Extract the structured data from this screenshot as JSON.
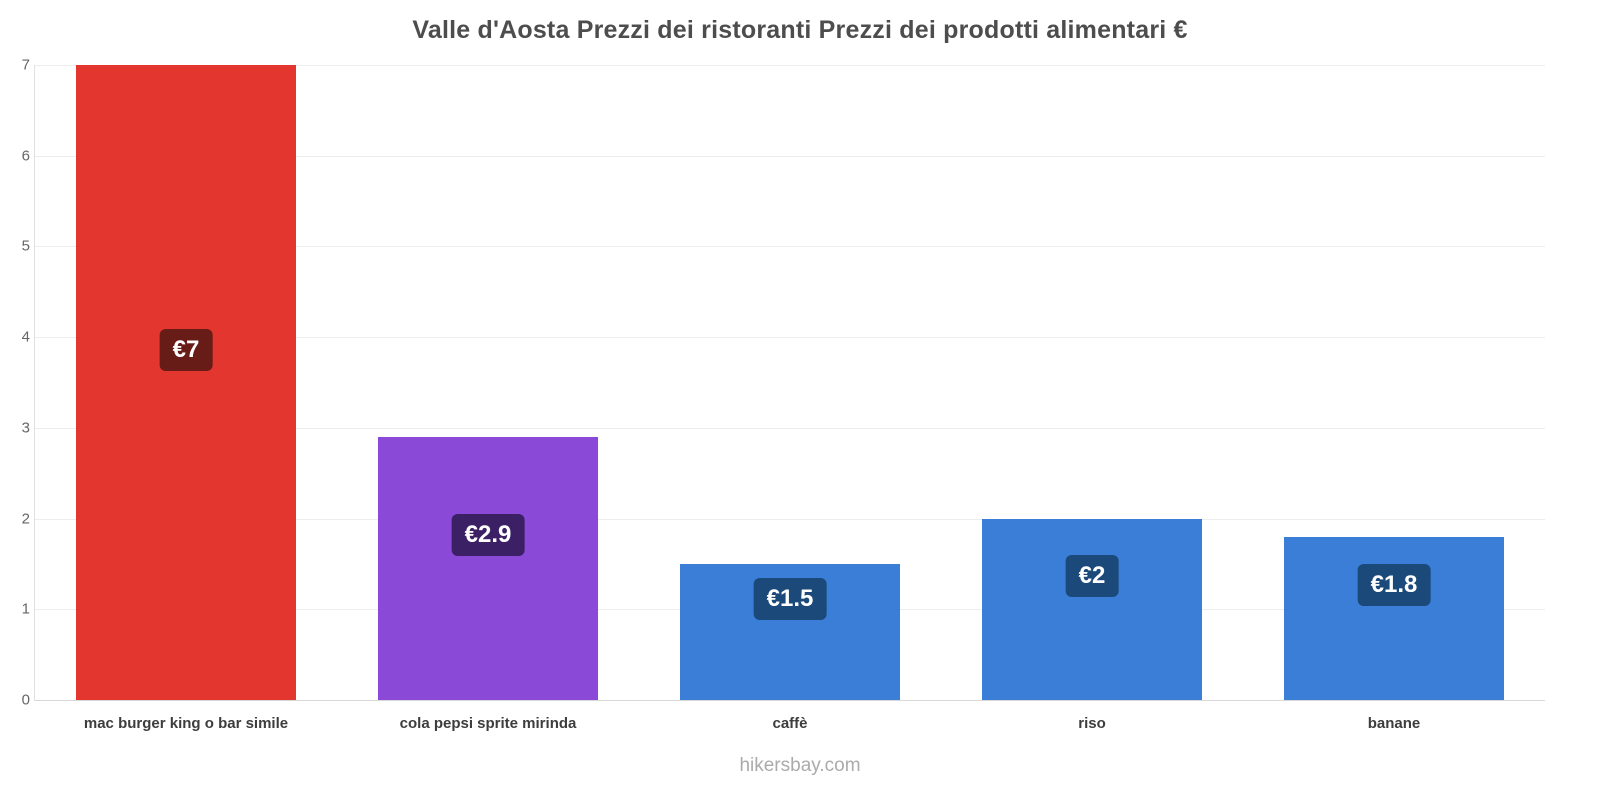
{
  "title": "Valle d'Aosta Prezzi dei ristoranti Prezzi dei prodotti alimentari €",
  "footer": "hikersbay.com",
  "chart_data": {
    "type": "bar",
    "title": "Valle d'Aosta Prezzi dei ristoranti Prezzi dei prodotti alimentari €",
    "categories": [
      "mac burger king o bar simile",
      "cola pepsi sprite mirinda",
      "caffè",
      "riso",
      "banane"
    ],
    "values": [
      7,
      2.9,
      1.5,
      2,
      1.8
    ],
    "value_labels": [
      "€7",
      "€2.9",
      "€1.5",
      "€2",
      "€1.8"
    ],
    "bar_colors": [
      "#e2362e",
      "#8a49d6",
      "#3b7ed8",
      "#3b7ed8",
      "#3b7ed8"
    ],
    "badge_colors": [
      "#671c17",
      "#3c2066",
      "#1b4a7a",
      "#1b4a7a",
      "#1b4a7a"
    ],
    "currency": "€",
    "xlabel": "",
    "ylabel": "",
    "ylim": [
      0,
      7
    ],
    "yticks": [
      0,
      1,
      2,
      3,
      4,
      5,
      6,
      7
    ],
    "grid": true,
    "legend": false,
    "source_label": "hikersbay.com"
  },
  "layout_colors": {
    "background": "#ffffff",
    "title_text": "#4d4d4d",
    "tick_text": "#666666",
    "category_text": "#3d3d3d",
    "gridline": "#ededed",
    "footer_text": "#ababab"
  }
}
